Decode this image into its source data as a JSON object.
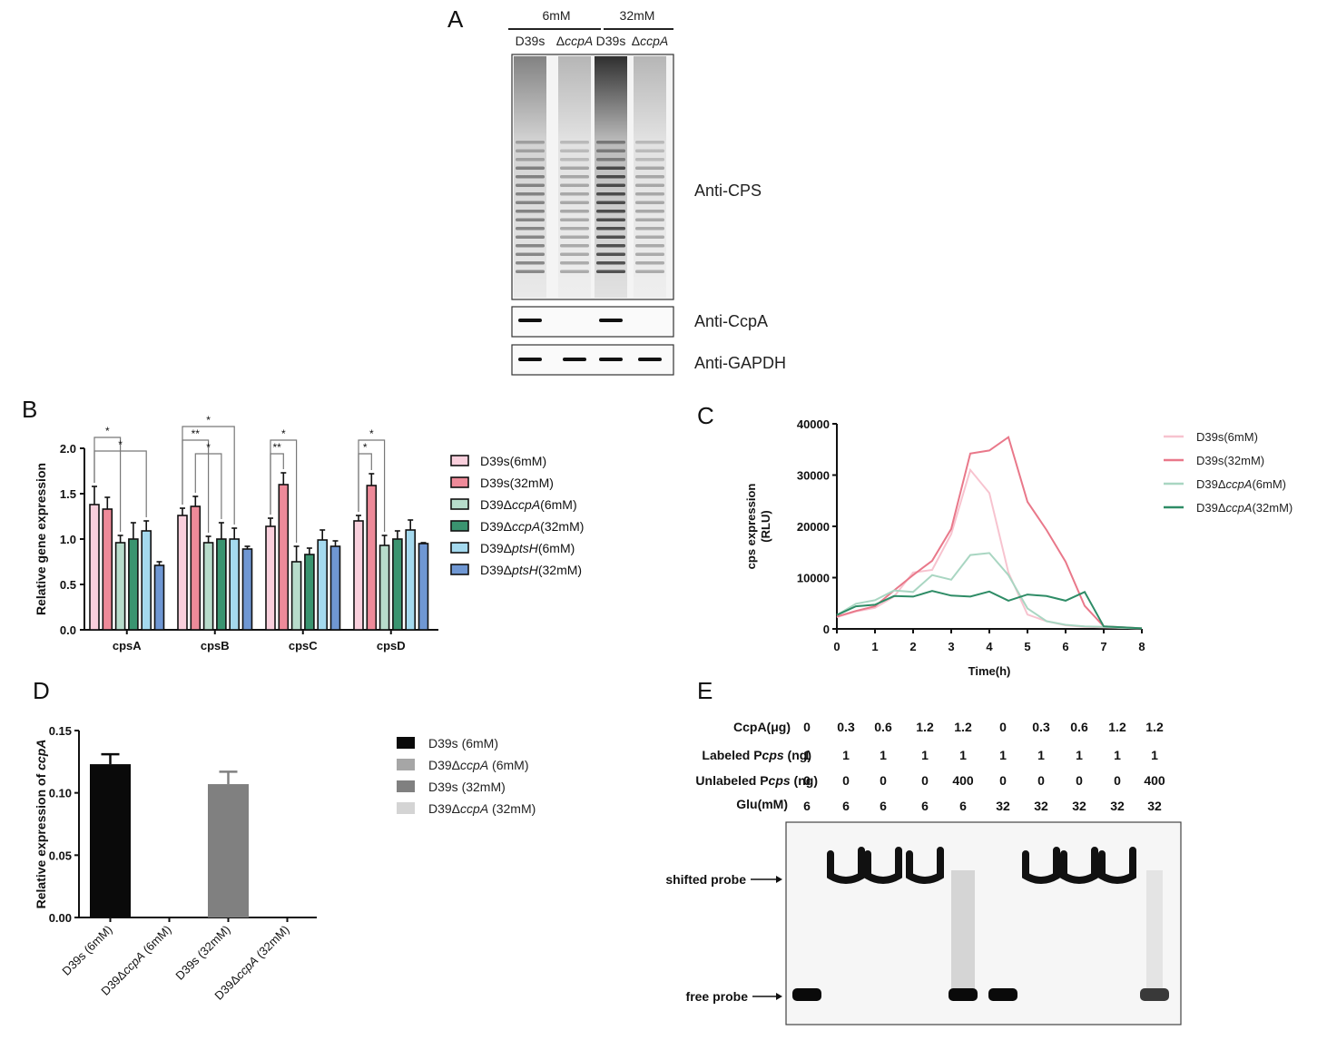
{
  "panels": {
    "A": {
      "label": "A",
      "conditions": [
        "6mM",
        "32mM"
      ],
      "lanes": [
        "D39s",
        "ΔccpA",
        "D39s",
        "ΔccpA"
      ],
      "blots": [
        "Anti-CPS",
        "Anti-CcpA",
        "Anti-GAPDH"
      ],
      "ccpa_band_present": [
        true,
        false,
        true,
        false
      ],
      "gapdh_band_present": [
        true,
        true,
        true,
        true
      ],
      "cps_intensity": [
        0.55,
        0.3,
        0.95,
        0.3
      ]
    },
    "B": {
      "label": "B"
    },
    "C": {
      "label": "C"
    },
    "D": {
      "label": "D"
    },
    "E": {
      "label": "E",
      "row_labels": [
        "CcpA(μg)",
        "Labeled Pcps (ng)",
        "Unlabeled Pcps (ng)",
        "Glu(mM)"
      ],
      "rows": [
        [
          "0",
          "0.3",
          "0.6",
          "1.2",
          "1.2",
          "0",
          "0.3",
          "0.6",
          "1.2",
          "1.2"
        ],
        [
          "1",
          "1",
          "1",
          "1",
          "1",
          "1",
          "1",
          "1",
          "1",
          "1"
        ],
        [
          "0",
          "0",
          "0",
          "0",
          "400",
          "0",
          "0",
          "0",
          "0",
          "400"
        ],
        [
          "6",
          "6",
          "6",
          "6",
          "6",
          "32",
          "32",
          "32",
          "32",
          "32"
        ]
      ],
      "arrow_labels": [
        "shifted probe",
        "free probe"
      ],
      "shifted_band": [
        false,
        true,
        true,
        true,
        "smear",
        false,
        true,
        true,
        true,
        "faint"
      ],
      "free_band": [
        true,
        false,
        false,
        false,
        true,
        true,
        false,
        false,
        false,
        true
      ]
    }
  },
  "chart_data": [
    {
      "id": "B",
      "type": "bar",
      "title": "",
      "xlabel": "",
      "ylabel": "Relative gene expression",
      "ylim": [
        0,
        2.0
      ],
      "yticks": [
        "0.0",
        "0.5",
        "1.0",
        "1.5",
        "2.0"
      ],
      "categories": [
        "cpsA",
        "cpsB",
        "cpsC",
        "cpsD"
      ],
      "legend_position": "right",
      "series": [
        {
          "name": "D39s(6mM)",
          "color": "#f9cfdc",
          "values": [
            1.38,
            1.26,
            1.14,
            1.2
          ],
          "errors": [
            0.2,
            0.08,
            0.09,
            0.06
          ]
        },
        {
          "name": "D39s(32mM)",
          "color": "#ee8a99",
          "values": [
            1.33,
            1.36,
            1.6,
            1.59
          ],
          "errors": [
            0.13,
            0.11,
            0.13,
            0.13
          ]
        },
        {
          "name": "D39ΔccpA(6mM)",
          "color": "#b7dccb",
          "values": [
            0.96,
            0.96,
            0.75,
            0.93
          ],
          "errors": [
            0.08,
            0.07,
            0.17,
            0.11
          ]
        },
        {
          "name": "D39ΔccpA(32mM)",
          "color": "#3a9470",
          "values": [
            1.0,
            1.0,
            0.83,
            1.0
          ],
          "errors": [
            0.18,
            0.18,
            0.07,
            0.09
          ]
        },
        {
          "name": "D39ΔptsH(6mM)",
          "color": "#a4d9ee",
          "values": [
            1.09,
            1.0,
            0.99,
            1.1
          ],
          "errors": [
            0.11,
            0.12,
            0.11,
            0.11
          ]
        },
        {
          "name": "D39ΔptsH(32mM)",
          "color": "#6f97d3",
          "values": [
            0.71,
            0.89,
            0.92,
            0.95
          ],
          "errors": [
            0.04,
            0.03,
            0.06,
            0.01
          ]
        }
      ],
      "legend_labels": [
        {
          "pre": "D39s(6mM)",
          "ital": "",
          "post": ""
        },
        {
          "pre": "D39s(32mM)",
          "ital": "",
          "post": ""
        },
        {
          "pre": "D39Δ",
          "ital": "ccpA",
          "post": "(6mM)"
        },
        {
          "pre": "D39Δ",
          "ital": "ccpA",
          "post": "(32mM)"
        },
        {
          "pre": "D39Δ",
          "ital": "ptsH",
          "post": "(6mM)"
        },
        {
          "pre": "D39Δ",
          "ital": "ptsH",
          "post": "(32mM)"
        }
      ],
      "annotations": [
        {
          "category": 0,
          "from": 0,
          "to": 2,
          "level": 1,
          "text": "*"
        },
        {
          "category": 0,
          "from": 0,
          "to": 4,
          "level": 0,
          "text": "*"
        },
        {
          "category": 1,
          "from": 0,
          "to": 4,
          "level": 2,
          "text": "*"
        },
        {
          "category": 1,
          "from": 0,
          "to": 2,
          "level": 1,
          "text": "**"
        },
        {
          "category": 1,
          "from": 1,
          "to": 3,
          "level": 0,
          "text": "*"
        },
        {
          "category": 2,
          "from": 0,
          "to": 2,
          "level": 1,
          "text": "*"
        },
        {
          "category": 2,
          "from": 0,
          "to": 1,
          "level": 0,
          "text": "**"
        },
        {
          "category": 3,
          "from": 0,
          "to": 2,
          "level": 1,
          "text": "*"
        },
        {
          "category": 3,
          "from": 0,
          "to": 1,
          "level": 0,
          "text": "*"
        }
      ]
    },
    {
      "id": "C",
      "type": "line",
      "title": "",
      "xlabel": "Time(h)",
      "ylabel": "cps expression (RLU)",
      "xlim": [
        0,
        8
      ],
      "ylim": [
        0,
        40000
      ],
      "xticks": [
        "0",
        "1",
        "2",
        "3",
        "4",
        "5",
        "6",
        "7",
        "8"
      ],
      "yticks": [
        "0",
        "10000",
        "20000",
        "30000",
        "40000"
      ],
      "legend_position": "right",
      "x": [
        0,
        0.5,
        1,
        1.5,
        2,
        2.5,
        3,
        3.5,
        4,
        4.5,
        5,
        5.5,
        6,
        6.5,
        7,
        7.5,
        8
      ],
      "series": [
        {
          "name": "D39s(6mM)",
          "color": "#f7c3cf",
          "values": [
            2300,
            3400,
            4100,
            6300,
            11000,
            11500,
            18500,
            31000,
            26500,
            11000,
            2800,
            1500,
            700,
            400,
            300,
            200,
            100
          ]
        },
        {
          "name": "D39s(32mM)",
          "color": "#e9788a",
          "values": [
            2400,
            3500,
            4400,
            7500,
            10500,
            13300,
            19500,
            34200,
            34800,
            37400,
            24800,
            19300,
            13100,
            4500,
            500,
            300,
            100
          ]
        },
        {
          "name": "D39ΔccpA(6mM)",
          "color": "#a9d6c2",
          "values": [
            2700,
            4900,
            5600,
            7500,
            7200,
            10500,
            9600,
            14400,
            14800,
            10500,
            4000,
            1500,
            800,
            500,
            400,
            200,
            100
          ]
        },
        {
          "name": "D39ΔccpA(32mM)",
          "color": "#2e8c66",
          "values": [
            2700,
            4400,
            4700,
            6400,
            6300,
            7400,
            6500,
            6300,
            7300,
            5500,
            6700,
            6400,
            5500,
            7200,
            500,
            300,
            100
          ]
        }
      ],
      "legend_labels": [
        {
          "pre": "D39s(6mM)",
          "ital": "",
          "post": ""
        },
        {
          "pre": "D39s(32mM)",
          "ital": "",
          "post": ""
        },
        {
          "pre": "D39Δ",
          "ital": "ccpA",
          "post": "(6mM)"
        },
        {
          "pre": "D39Δ",
          "ital": "ccpA",
          "post": "(32mM)"
        }
      ]
    },
    {
      "id": "D",
      "type": "bar",
      "title": "",
      "xlabel": "",
      "ylabel_pre": "Relative expression of ",
      "ylabel_ital": "ccpA",
      "ylim": [
        0,
        0.15
      ],
      "yticks": [
        "0.00",
        "0.05",
        "0.10",
        "0.15"
      ],
      "categories": [
        {
          "pre": "D39s (6mM)",
          "ital": "",
          "post": ""
        },
        {
          "pre": "D39Δ",
          "ital": "ccpA",
          "post": " (6mM)"
        },
        {
          "pre": "D39s (32mM)",
          "ital": "",
          "post": ""
        },
        {
          "pre": "D39Δ",
          "ital": "ccpA",
          "post": " (32mM)"
        }
      ],
      "values": [
        0.123,
        0.0,
        0.107,
        0.0
      ],
      "errors": [
        0.008,
        0.0,
        0.01,
        0.0
      ],
      "colors": [
        "#0a0a0a",
        "#a6a6a6",
        "#808080",
        "#d4d4d4"
      ],
      "legend_position": "right",
      "legend_labels": [
        {
          "pre": "D39s (6mM)",
          "ital": "",
          "post": ""
        },
        {
          "pre": "D39Δ",
          "ital": "ccpA",
          "post": " (6mM)"
        },
        {
          "pre": "D39s (32mM)",
          "ital": "",
          "post": ""
        },
        {
          "pre": "D39Δ",
          "ital": "ccpA",
          "post": " (32mM)"
        }
      ]
    }
  ]
}
